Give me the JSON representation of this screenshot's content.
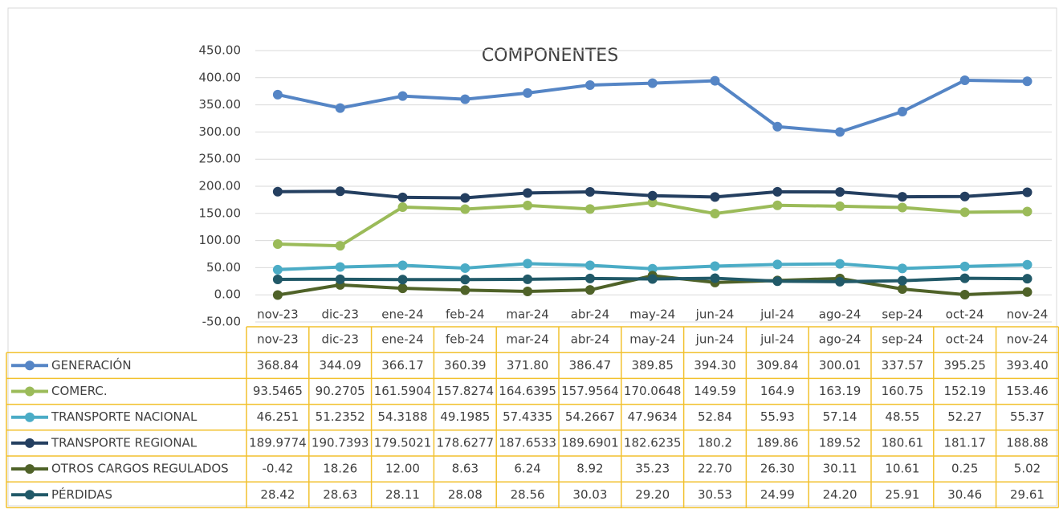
{
  "chart_data": {
    "type": "line",
    "title": "COMPONENTES",
    "categories": [
      "nov-23",
      "dic-23",
      "ene-24",
      "feb-24",
      "mar-24",
      "abr-24",
      "may-24",
      "jun-24",
      "jul-24",
      "ago-24",
      "sep-24",
      "oct-24",
      "nov-24"
    ],
    "ylim": [
      -50,
      450
    ],
    "yticks": [
      {
        "value": -50,
        "label": "-50.00"
      },
      {
        "value": 0,
        "label": "0.00"
      },
      {
        "value": 50,
        "label": "50.00"
      },
      {
        "value": 100,
        "label": "100.00"
      },
      {
        "value": 150,
        "label": "150.00"
      },
      {
        "value": 200,
        "label": "200.00"
      },
      {
        "value": 250,
        "label": "250.00"
      },
      {
        "value": 300,
        "label": "300.00"
      },
      {
        "value": 350,
        "label": "350.00"
      },
      {
        "value": 400,
        "label": "400.00"
      },
      {
        "value": 450,
        "label": "450.00"
      }
    ],
    "grid": true,
    "series": [
      {
        "name": "GENERACIÓN",
        "color": "#5585c5",
        "values": [
          368.84,
          344.09,
          366.17,
          360.39,
          371.8,
          386.47,
          389.85,
          394.3,
          309.84,
          300.01,
          337.57,
          395.25,
          393.4
        ],
        "value_labels": [
          "368.84",
          "344.09",
          "366.17",
          "360.39",
          "371.80",
          "386.47",
          "389.85",
          "394.30",
          "309.84",
          "300.01",
          "337.57",
          "395.25",
          "393.40"
        ]
      },
      {
        "name": "COMERC.",
        "color": "#9bbb59",
        "values": [
          93.5465,
          90.2705,
          161.5904,
          157.8274,
          164.6395,
          157.9564,
          170.0648,
          149.59,
          164.9,
          163.19,
          160.75,
          152.19,
          153.46
        ],
        "value_labels": [
          "93.5465",
          "90.2705",
          "161.5904",
          "157.8274",
          "164.6395",
          "157.9564",
          "170.0648",
          "149.59",
          "164.9",
          "163.19",
          "160.75",
          "152.19",
          "153.46"
        ]
      },
      {
        "name": "TRANSPORTE NACIONAL",
        "color": "#4bacc6",
        "values": [
          46.251,
          51.2352,
          54.3188,
          49.1985,
          57.4335,
          54.2667,
          47.9634,
          52.84,
          55.93,
          57.14,
          48.55,
          52.27,
          55.37
        ],
        "value_labels": [
          "46.251",
          "51.2352",
          "54.3188",
          "49.1985",
          "57.4335",
          "54.2667",
          "47.9634",
          "52.84",
          "55.93",
          "57.14",
          "48.55",
          "52.27",
          "55.37"
        ]
      },
      {
        "name": "TRANSPORTE REGIONAL",
        "color": "#243f60",
        "values": [
          189.9774,
          190.7393,
          179.5021,
          178.6277,
          187.6533,
          189.6901,
          182.6235,
          180.2,
          189.86,
          189.52,
          180.61,
          181.17,
          188.88
        ],
        "value_labels": [
          "189.9774",
          "190.7393",
          "179.5021",
          "178.6277",
          "187.6533",
          "189.6901",
          "182.6235",
          "180.2",
          "189.86",
          "189.52",
          "180.61",
          "181.17",
          "188.88"
        ]
      },
      {
        "name": "OTROS CARGOS REGULADOS",
        "color": "#4f6228",
        "values": [
          -0.42,
          18.26,
          12.0,
          8.63,
          6.24,
          8.92,
          35.23,
          22.7,
          26.3,
          30.11,
          10.61,
          0.25,
          5.02
        ],
        "value_labels": [
          "-0.42",
          "18.26",
          "12.00",
          "8.63",
          "6.24",
          "8.92",
          "35.23",
          "22.70",
          "26.30",
          "30.11",
          "10.61",
          "0.25",
          "5.02"
        ]
      },
      {
        "name": "PÉRDIDAS",
        "color": "#215968",
        "values": [
          28.42,
          28.63,
          28.11,
          28.08,
          28.56,
          30.03,
          29.2,
          30.53,
          24.99,
          24.2,
          25.91,
          30.46,
          29.61
        ],
        "value_labels": [
          "28.42",
          "28.63",
          "28.11",
          "28.08",
          "28.56",
          "30.03",
          "29.20",
          "30.53",
          "24.99",
          "24.20",
          "25.91",
          "30.46",
          "29.61"
        ]
      }
    ]
  }
}
